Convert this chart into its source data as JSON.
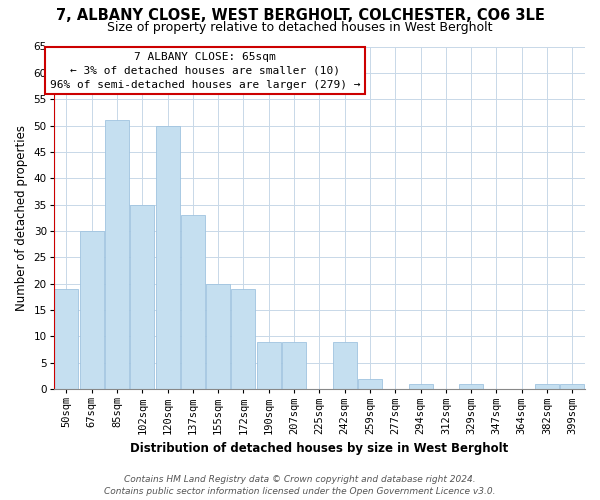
{
  "title": "7, ALBANY CLOSE, WEST BERGHOLT, COLCHESTER, CO6 3LE",
  "subtitle": "Size of property relative to detached houses in West Bergholt",
  "xlabel": "Distribution of detached houses by size in West Bergholt",
  "ylabel": "Number of detached properties",
  "bar_color": "#c5dff0",
  "bar_edge_color": "#a0c4e0",
  "highlight_line_color": "#cc0000",
  "categories": [
    "50sqm",
    "67sqm",
    "85sqm",
    "102sqm",
    "120sqm",
    "137sqm",
    "155sqm",
    "172sqm",
    "190sqm",
    "207sqm",
    "225sqm",
    "242sqm",
    "259sqm",
    "277sqm",
    "294sqm",
    "312sqm",
    "329sqm",
    "347sqm",
    "364sqm",
    "382sqm",
    "399sqm"
  ],
  "values": [
    19,
    30,
    51,
    35,
    50,
    33,
    20,
    19,
    9,
    9,
    0,
    9,
    2,
    0,
    1,
    0,
    1,
    0,
    0,
    1,
    1
  ],
  "highlight_index": 0,
  "ylim": [
    0,
    65
  ],
  "yticks": [
    0,
    5,
    10,
    15,
    20,
    25,
    30,
    35,
    40,
    45,
    50,
    55,
    60,
    65
  ],
  "annotation_title": "7 ALBANY CLOSE: 65sqm",
  "annotation_line1": "← 3% of detached houses are smaller (10)",
  "annotation_line2": "96% of semi-detached houses are larger (279) →",
  "footer_line1": "Contains HM Land Registry data © Crown copyright and database right 2024.",
  "footer_line2": "Contains public sector information licensed under the Open Government Licence v3.0.",
  "background_color": "#ffffff",
  "grid_color": "#c8d8e8",
  "title_fontsize": 10.5,
  "subtitle_fontsize": 9,
  "axis_label_fontsize": 8.5,
  "tick_fontsize": 7.5,
  "annotation_fontsize": 8,
  "footer_fontsize": 6.5
}
